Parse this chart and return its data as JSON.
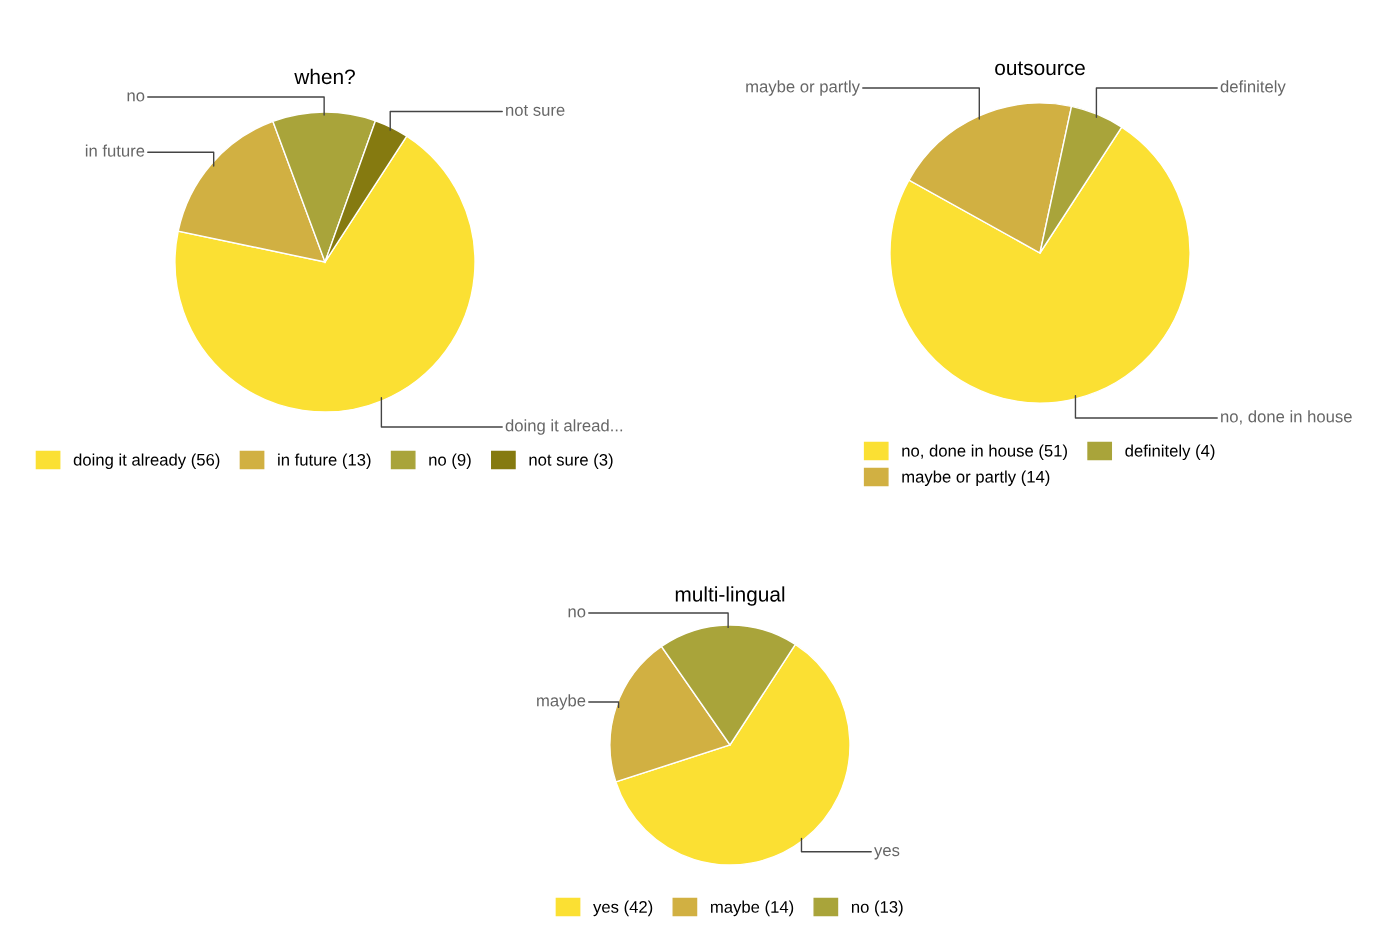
{
  "chart_data": [
    {
      "type": "pie",
      "title": "when?",
      "categories": [
        "doing it already (56)",
        "in future (13)",
        "no (9)",
        "not sure (3)"
      ],
      "values": [
        56,
        13,
        9,
        3
      ],
      "colors": [
        "#fbe033",
        "#d1b042",
        "#a9a43a",
        "#857a10"
      ],
      "annotations": [
        "doing it alread...",
        "in future",
        "no",
        "not sure"
      ],
      "legend": "bottom"
    },
    {
      "type": "pie",
      "title": "outsource",
      "categories": [
        "no, done in house (51)",
        "maybe or partly (14)",
        "definitely (4)"
      ],
      "values": [
        51,
        14,
        4
      ],
      "colors": [
        "#fbe033",
        "#d1b042",
        "#a9a43a"
      ],
      "annotations": [
        "no, done in house",
        "maybe or partly",
        "definitely"
      ],
      "legend": "bottom"
    },
    {
      "type": "pie",
      "title": "multi-lingual",
      "categories": [
        "yes (42)",
        "maybe (14)",
        "no (13)"
      ],
      "values": [
        42,
        14,
        13
      ],
      "colors": [
        "#fbe033",
        "#d1b042",
        "#a9a43a"
      ],
      "annotations": [
        "yes",
        "maybe",
        "no"
      ],
      "legend": "bottom"
    }
  ]
}
